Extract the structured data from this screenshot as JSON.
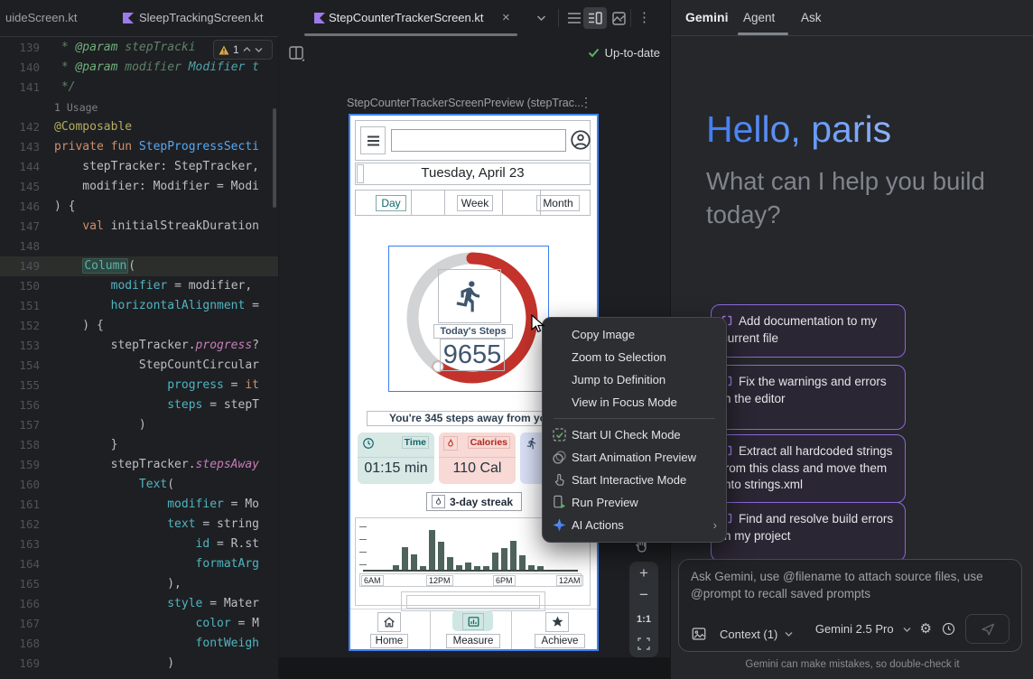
{
  "editor": {
    "tabs": [
      {
        "label": "uideScreen.kt",
        "icon": null,
        "active": false
      },
      {
        "label": "SleepTrackingScreen.kt",
        "icon": "kotlin-icon",
        "active": false
      },
      {
        "label": "StepCounterTrackerScreen.kt",
        "icon": "kotlin-icon",
        "active": true,
        "close": "×"
      }
    ],
    "toolbar_icons": [
      "chevron-down-icon",
      "code-view-icon",
      "split-view-icon",
      "design-view-icon",
      "more-vertical-icon"
    ],
    "warning_badge": {
      "count": "1",
      "icons": [
        "warning-icon",
        "chevron-up-icon",
        "chevron-down-icon"
      ]
    },
    "lines": [
      {
        "n": "139",
        "seg": [
          [
            "cmt",
            " * "
          ],
          [
            "tag",
            "@param"
          ],
          [
            "cmt",
            " stepTracki"
          ]
        ]
      },
      {
        "n": "140",
        "seg": [
          [
            "cmt",
            " * "
          ],
          [
            "tag",
            "@param"
          ],
          [
            "cmt",
            " modifier "
          ],
          [
            "ref",
            "Modifier t"
          ]
        ]
      },
      {
        "n": "141",
        "seg": [
          [
            "cmt",
            " */"
          ]
        ]
      },
      {
        "n": "",
        "seg": [
          [
            "inlay",
            "1 Usage"
          ]
        ]
      },
      {
        "n": "142",
        "seg": [
          [
            "ann",
            "@Composable"
          ]
        ]
      },
      {
        "n": "143",
        "seg": [
          [
            "kw",
            "private fun "
          ],
          [
            "fn",
            "StepProgressSecti"
          ]
        ]
      },
      {
        "n": "144",
        "seg": [
          [
            "pln",
            "    stepTracker: StepTracker,"
          ]
        ]
      },
      {
        "n": "145",
        "seg": [
          [
            "pln",
            "    modifier: Modifier = Modi"
          ]
        ]
      },
      {
        "n": "146",
        "seg": [
          [
            "pln",
            ") {"
          ]
        ]
      },
      {
        "n": "147",
        "seg": [
          [
            "pln",
            "    "
          ],
          [
            "kw",
            "val "
          ],
          [
            "pln",
            "initialStreakDuration"
          ]
        ]
      },
      {
        "n": "148",
        "seg": []
      },
      {
        "n": "149",
        "hl": true,
        "seg": [
          [
            "pln",
            "    "
          ],
          [
            "colhl",
            "Column"
          ],
          [
            "pln",
            "("
          ]
        ]
      },
      {
        "n": "150",
        "seg": [
          [
            "pln",
            "        "
          ],
          [
            "named",
            "modifier"
          ],
          [
            "pln",
            " = modifier,"
          ]
        ]
      },
      {
        "n": "151",
        "seg": [
          [
            "pln",
            "        "
          ],
          [
            "named",
            "horizontalAlignment"
          ],
          [
            "pln",
            " ="
          ]
        ]
      },
      {
        "n": "152",
        "seg": [
          [
            "pln",
            "    ) {"
          ]
        ]
      },
      {
        "n": "153",
        "seg": [
          [
            "pln",
            "        stepTracker."
          ],
          [
            "prop",
            "progress"
          ],
          [
            "pln",
            "?"
          ]
        ]
      },
      {
        "n": "154",
        "seg": [
          [
            "pln",
            "            StepCountCircular"
          ]
        ]
      },
      {
        "n": "155",
        "seg": [
          [
            "pln",
            "                "
          ],
          [
            "named",
            "progress"
          ],
          [
            "pln",
            " = "
          ],
          [
            "kw2",
            "it"
          ]
        ]
      },
      {
        "n": "156",
        "seg": [
          [
            "pln",
            "                "
          ],
          [
            "named",
            "steps"
          ],
          [
            "pln",
            " = stepT"
          ]
        ]
      },
      {
        "n": "157",
        "seg": [
          [
            "pln",
            "            )"
          ]
        ]
      },
      {
        "n": "158",
        "seg": [
          [
            "pln",
            "        }"
          ]
        ]
      },
      {
        "n": "159",
        "seg": [
          [
            "pln",
            "        stepTracker."
          ],
          [
            "prop",
            "stepsAway"
          ]
        ]
      },
      {
        "n": "160",
        "seg": [
          [
            "pln",
            "            "
          ],
          [
            "named",
            "Text"
          ],
          [
            "pln",
            "("
          ]
        ]
      },
      {
        "n": "161",
        "seg": [
          [
            "pln",
            "                "
          ],
          [
            "named",
            "modifier"
          ],
          [
            "pln",
            " = Mo"
          ]
        ]
      },
      {
        "n": "162",
        "seg": [
          [
            "pln",
            "                "
          ],
          [
            "named",
            "text"
          ],
          [
            "pln",
            " = string"
          ]
        ]
      },
      {
        "n": "163",
        "seg": [
          [
            "pln",
            "                    "
          ],
          [
            "named",
            "id"
          ],
          [
            "pln",
            " = R.st"
          ]
        ]
      },
      {
        "n": "164",
        "seg": [
          [
            "pln",
            "                    "
          ],
          [
            "named",
            "formatArg"
          ]
        ]
      },
      {
        "n": "165",
        "seg": [
          [
            "pln",
            "                ),"
          ]
        ]
      },
      {
        "n": "166",
        "seg": [
          [
            "pln",
            "                "
          ],
          [
            "named",
            "style"
          ],
          [
            "pln",
            " = Mater"
          ]
        ]
      },
      {
        "n": "167",
        "seg": [
          [
            "pln",
            "                    "
          ],
          [
            "named",
            "color"
          ],
          [
            "pln",
            " = M"
          ]
        ]
      },
      {
        "n": "168",
        "seg": [
          [
            "pln",
            "                    "
          ],
          [
            "named",
            "fontWeigh"
          ]
        ]
      },
      {
        "n": "169",
        "seg": [
          [
            "pln",
            "                )"
          ]
        ]
      }
    ]
  },
  "preview": {
    "status": "Up-to-date",
    "status_icon": "check-icon",
    "title": "StepCounterTrackerScreenPreview (stepTrac...",
    "title_menu_icon": "more-vertical-icon",
    "toolbar_icon": "layout-picker-icon",
    "zoom_controls": {
      "pan_icon": "pan-hand-icon",
      "zoom_in": "+",
      "zoom_out": "−",
      "ratio": "1:1",
      "fit_icon": "fit-screen-icon"
    },
    "phone": {
      "appbar_icons": [
        "menu-icon",
        "profile-icon"
      ],
      "date": "Tuesday, April 23",
      "tabs": [
        "Day",
        "Week",
        "Month"
      ],
      "steps_label": "Today's Steps",
      "steps_value": "9655",
      "runner_icon": "runner-icon",
      "away_text": "You're 345 steps away from your",
      "cards": [
        {
          "icon": "clock-icon",
          "label": "Time",
          "value": "01:15 min",
          "bg": "#d7e8e5",
          "accent": "#0f6468"
        },
        {
          "icon": "flame-icon",
          "label": "Calories",
          "value": "110 Cal",
          "bg": "#f8d9d5",
          "accent": "#b3261e"
        },
        {
          "icon": "runner-icon",
          "label": "",
          "value": "",
          "bg": "#dbe2f8",
          "accent": "#3d566e"
        }
      ],
      "streak_icon": "flame-icon",
      "streak": "3-day streak",
      "chart": {
        "type": "bar",
        "bars": [
          5,
          25,
          17,
          4,
          44,
          31,
          14,
          5,
          8,
          4,
          4,
          19,
          24,
          32,
          16,
          5,
          4
        ],
        "x_labels": [
          "6AM",
          "12PM",
          "6PM",
          "12AM"
        ],
        "bar_color": "#4d635b"
      },
      "nav": [
        {
          "label": "Home",
          "icon": "home-icon"
        },
        {
          "label": "Measure",
          "icon": "measure-chart-icon",
          "selected": true
        },
        {
          "label": "Achieve",
          "icon": "star-icon"
        }
      ]
    }
  },
  "context_menu": {
    "items": [
      {
        "label": "Copy Image"
      },
      {
        "label": "Zoom to Selection"
      },
      {
        "label": "Jump to Definition"
      },
      {
        "label": "View in Focus Mode"
      },
      {
        "divider": true
      },
      {
        "label": "Start UI Check Mode",
        "icon": "ui-check-icon"
      },
      {
        "label": "Start Animation Preview",
        "icon": "animation-icon"
      },
      {
        "label": "Start Interactive Mode",
        "icon": "interactive-icon"
      },
      {
        "label": "Run Preview",
        "icon": "run-preview-icon"
      },
      {
        "label": "AI Actions",
        "icon": "ai-actions-icon",
        "submenu": "›"
      }
    ]
  },
  "gemini": {
    "title": "Gemini",
    "tabs": [
      "Agent",
      "Ask"
    ],
    "greeting": "Hello, paris",
    "subtitle": "What can I help you build today?",
    "cards": [
      "Add documentation to my current file",
      "Fix the warnings and errors in the editor",
      "Extract all hardcoded strings from this class and move them into strings.xml",
      "Find and resolve build errors in my project"
    ],
    "card_icon": "prompt-icon",
    "input_placeholder": "Ask Gemini, use @filename to attach source files, use @prompt to recall saved prompts",
    "input_icons": [
      "attach-image-icon",
      "gear-icon",
      "history-icon",
      "send-icon"
    ],
    "context_label": "Context (1)",
    "model_label": "Gemini 2.5 Pro",
    "disclaimer": "Gemini can make mistakes, so double-check it"
  },
  "colors": {
    "accent_blue": "#3B82F6",
    "ring_red": "#c3332b",
    "ring_track": "#d2d3d5",
    "teal_dark": "#0f6468",
    "card_purple_border": "#8d68d8",
    "menu_bg": "#2c2e31",
    "ok_green": "#5fad65"
  }
}
